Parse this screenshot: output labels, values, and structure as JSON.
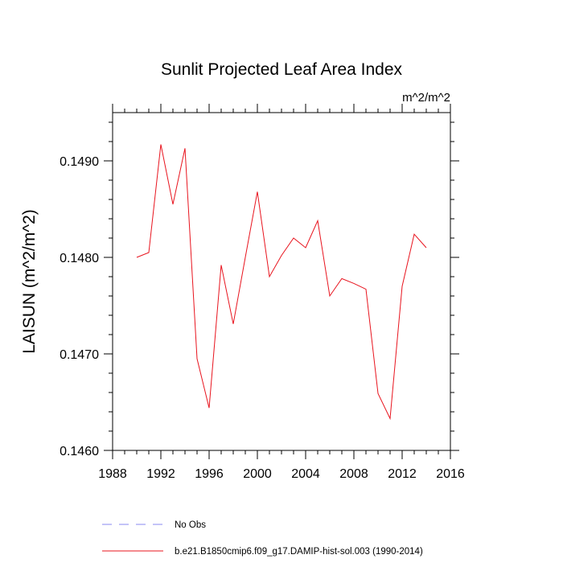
{
  "chart_data": {
    "type": "line",
    "title": "Sunlit Projected Leaf Area Index",
    "units_label": "m^2/m^2",
    "ylabel": "LAISUN  (m^2/m^2)",
    "xlabel": "",
    "xlim": [
      1988,
      2016
    ],
    "ylim": [
      0.146,
      0.1495
    ],
    "x_ticks": [
      1988,
      1992,
      1996,
      2000,
      2004,
      2008,
      2012,
      2016
    ],
    "x_tick_labels": [
      "1988",
      "1992",
      "1996",
      "2000",
      "2004",
      "2008",
      "2012",
      "2016"
    ],
    "y_ticks": [
      0.146,
      0.147,
      0.148,
      0.149
    ],
    "y_tick_labels": [
      "0.1460",
      "0.1470",
      "0.1480",
      "0.1490"
    ],
    "grid": false,
    "legend_placement": "bottom",
    "series": [
      {
        "name": "b.e21.B1850cmip6.f09_g17.DAMIP-hist-sol.003 (1990-2014)",
        "color": "#e8141e",
        "dash": "solid",
        "x": [
          1990,
          1991,
          1992,
          1993,
          1994,
          1995,
          1996,
          1997,
          1998,
          1999,
          2000,
          2001,
          2002,
          2003,
          2004,
          2005,
          2006,
          2007,
          2008,
          2009,
          2010,
          2011,
          2012,
          2013,
          2014
        ],
        "y": [
          0.148,
          0.14805,
          0.14917,
          0.14855,
          0.14913,
          0.14695,
          0.14644,
          0.14792,
          0.14731,
          0.148,
          0.14868,
          0.1478,
          0.14802,
          0.1482,
          0.1481,
          0.14838,
          0.1476,
          0.14778,
          0.14773,
          0.14767,
          0.14659,
          0.14633,
          0.1477,
          0.14824,
          0.1481
        ]
      }
    ],
    "legend": [
      {
        "label": "No Obs",
        "color": "#8a8af0",
        "dash": "dashed"
      },
      {
        "label": "b.e21.B1850cmip6.f09_g17.DAMIP-hist-sol.003 (1990-2014)",
        "color": "#e8141e",
        "dash": "solid"
      }
    ]
  }
}
